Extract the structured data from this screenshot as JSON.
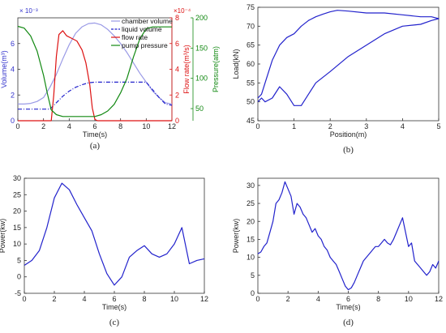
{
  "chart_data": [
    {
      "panel_label": "(a)",
      "type": "line",
      "xlabel": "Time(s)",
      "xlim": [
        0,
        12
      ],
      "xticks": [
        0,
        2,
        4,
        6,
        8,
        10,
        12
      ],
      "axes": {
        "volume": {
          "label": "Volume(m³)",
          "color": "#3333cc",
          "exponent": "× 10⁻³",
          "lim": [
            0,
            8
          ],
          "ticks": [
            0,
            2,
            4,
            6
          ]
        },
        "flow": {
          "label": "Flow rate(m³/s)",
          "color": "#dd1111",
          "exponent": "×10⁻⁴",
          "lim": [
            0,
            8
          ],
          "ticks": [
            0,
            2,
            4,
            6,
            8
          ]
        },
        "pressure": {
          "label": "Pressure(atm)",
          "color": "#118811",
          "lim": [
            30,
            200
          ],
          "ticks": [
            50,
            100,
            150,
            200
          ]
        }
      },
      "legend": [
        "chamber volume",
        "liquid volume",
        "flow rate",
        "pump pressure"
      ],
      "legend_position": "top-right",
      "series": [
        {
          "name": "chamber volume",
          "axis": "volume",
          "color": "#9a9ae6",
          "dash": "",
          "x": [
            0,
            0.5,
            1,
            1.5,
            2,
            2.5,
            3,
            3.5,
            4,
            4.5,
            5,
            5.5,
            6,
            6.5,
            7,
            7.5,
            8,
            8.5,
            9,
            9.5,
            10,
            10.5,
            11,
            11.5,
            12
          ],
          "y": [
            1.3,
            1.3,
            1.35,
            1.5,
            1.8,
            2.6,
            3.6,
            4.8,
            5.9,
            6.8,
            7.3,
            7.55,
            7.6,
            7.45,
            7.1,
            6.6,
            6.0,
            5.3,
            4.5,
            3.7,
            3.0,
            2.3,
            1.8,
            1.4,
            1.3
          ]
        },
        {
          "name": "liquid volume",
          "axis": "volume",
          "color": "#2222cc",
          "dash": "5,2,1,2",
          "x": [
            0,
            2.5,
            3,
            3.5,
            4,
            4.5,
            5,
            5.5,
            6,
            10,
            10.5,
            11,
            11.5,
            12
          ],
          "y": [
            0.9,
            0.9,
            1.4,
            1.9,
            2.3,
            2.6,
            2.8,
            2.95,
            3.0,
            3.0,
            2.4,
            1.8,
            1.3,
            1.2
          ]
        },
        {
          "name": "flow rate",
          "axis": "flow",
          "color": "#dd1111",
          "dash": "",
          "x": [
            0,
            2.6,
            2.8,
            3,
            3.2,
            3.5,
            3.8,
            4.2,
            4.6,
            5,
            5.3,
            5.6,
            5.8,
            6,
            6.2,
            12
          ],
          "y": [
            0,
            0,
            2.0,
            5.0,
            6.7,
            7.0,
            6.6,
            6.4,
            6.2,
            5.5,
            4.5,
            2.8,
            1.0,
            0.1,
            0,
            0
          ]
        },
        {
          "name": "pump pressure",
          "axis": "pressure",
          "color": "#118811",
          "dash": "",
          "x": [
            0,
            0.5,
            1,
            1.5,
            2,
            2.3,
            2.6,
            3,
            3.5,
            6,
            6.5,
            7,
            7.5,
            8,
            8.5,
            9,
            9.5,
            10,
            10.5,
            11,
            12
          ],
          "y": [
            186,
            183,
            170,
            145,
            105,
            75,
            48,
            40,
            37,
            37,
            40,
            46,
            57,
            76,
            100,
            135,
            165,
            182,
            185,
            185,
            185
          ]
        }
      ]
    },
    {
      "panel_label": "(b)",
      "type": "line",
      "xlabel": "Position(m)",
      "ylabel": "Load(kN)",
      "xlim": [
        0,
        5
      ],
      "ylim": [
        45,
        75
      ],
      "xticks": [
        0,
        1,
        2,
        3,
        4,
        5
      ],
      "yticks": [
        45,
        50,
        55,
        60,
        65,
        70,
        75
      ],
      "color": "#2222cc",
      "series": [
        {
          "name": "",
          "x": [
            0,
            0.1,
            0.2,
            0.4,
            0.6,
            0.8,
            1.0,
            1.2,
            1.4,
            1.6,
            1.8,
            2.0,
            2.2,
            2.5,
            3.0,
            3.5,
            4.0,
            4.5,
            4.8,
            5.0,
            4.8,
            4.5,
            4.0,
            3.5,
            3.0,
            2.5,
            2.0,
            1.6,
            1.4,
            1.2,
            1.0,
            0.8,
            0.6,
            0.4,
            0.2,
            0.1,
            0
          ],
          "y": [
            51,
            52,
            55,
            61,
            65,
            67,
            68,
            70,
            71.5,
            72.5,
            73.2,
            73.8,
            74.2,
            74,
            73.5,
            73.5,
            73,
            72.5,
            72.5,
            72,
            71.5,
            70.5,
            70,
            68,
            65,
            62,
            58,
            55,
            52,
            49,
            49,
            52,
            54,
            51,
            50,
            51,
            50
          ]
        }
      ]
    },
    {
      "panel_label": "(c)",
      "type": "line",
      "xlabel": "Time(s)",
      "ylabel": "Power(kw)",
      "xlim": [
        0,
        12
      ],
      "ylim": [
        -5,
        30
      ],
      "xticks": [
        0,
        2,
        4,
        6,
        8,
        10,
        12
      ],
      "yticks": [
        -5,
        0,
        5,
        10,
        15,
        20,
        25,
        30
      ],
      "color": "#2222cc",
      "series": [
        {
          "name": "",
          "x": [
            0,
            0.5,
            1,
            1.5,
            2,
            2.5,
            3,
            3.5,
            4,
            4.5,
            5,
            5.5,
            6,
            6.5,
            7,
            7.5,
            8,
            8.5,
            9,
            9.5,
            10,
            10.5,
            11,
            11.5,
            12
          ],
          "y": [
            3.5,
            5,
            8,
            15,
            24,
            28.5,
            26.5,
            22,
            18,
            14,
            7,
            1,
            -2.5,
            0,
            6,
            8,
            9.5,
            7,
            6,
            7,
            10,
            15,
            4,
            5,
            5.5
          ]
        }
      ]
    },
    {
      "panel_label": "(d)",
      "type": "line",
      "xlabel": "Time(s)",
      "ylabel": "Power(kw)",
      "xlim": [
        0,
        12
      ],
      "ylim": [
        0,
        32
      ],
      "xticks": [
        0,
        2,
        4,
        6,
        8,
        10,
        12
      ],
      "yticks": [
        0,
        5,
        10,
        15,
        20,
        25,
        30
      ],
      "color": "#2222cc",
      "series": [
        {
          "name": "",
          "x": [
            0,
            0.2,
            0.4,
            0.6,
            0.8,
            1.0,
            1.2,
            1.4,
            1.6,
            1.8,
            2.0,
            2.2,
            2.4,
            2.6,
            2.8,
            3.0,
            3.2,
            3.4,
            3.6,
            3.8,
            4.0,
            4.2,
            4.4,
            4.6,
            4.8,
            5.0,
            5.2,
            5.4,
            5.6,
            5.8,
            6.0,
            6.2,
            6.4,
            6.6,
            6.8,
            7.0,
            7.2,
            7.4,
            7.6,
            7.8,
            8.0,
            8.2,
            8.4,
            8.6,
            8.8,
            9.0,
            9.2,
            9.4,
            9.6,
            9.8,
            10.0,
            10.2,
            10.4,
            10.6,
            10.8,
            11.0,
            11.2,
            11.4,
            11.6,
            11.8,
            12.0
          ],
          "y": [
            11,
            11.5,
            13,
            14,
            17,
            20,
            25,
            26,
            28,
            31,
            29,
            27,
            22,
            25,
            24,
            22,
            21,
            19,
            17,
            18,
            16,
            15,
            13,
            12,
            10,
            9,
            8,
            6,
            4,
            2,
            1,
            1.5,
            3,
            5,
            7,
            9,
            10,
            11,
            12,
            13,
            13,
            14,
            15,
            14,
            13.5,
            15,
            17,
            19,
            21,
            17,
            13,
            14,
            9,
            8,
            7,
            6,
            5,
            6,
            8,
            7,
            9
          ]
        }
      ]
    }
  ]
}
